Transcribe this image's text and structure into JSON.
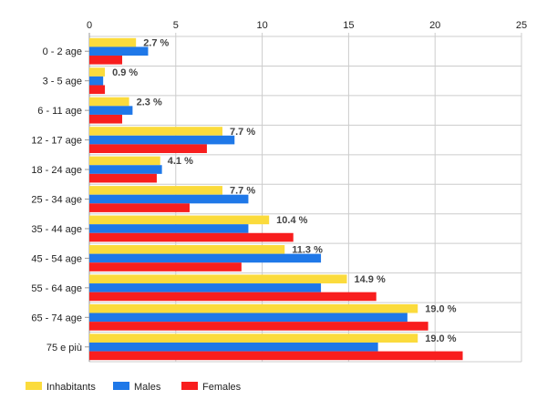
{
  "chart_data": {
    "type": "bar",
    "orientation": "horizontal",
    "categories": [
      "0 - 2 age",
      "3 - 5 age",
      "6 - 11 age",
      "12 - 17 age",
      "18 - 24 age",
      "25 - 34 age",
      "35 - 44 age",
      "45 - 54 age",
      "55 - 64 age",
      "65 - 74 age",
      "75 e più"
    ],
    "series": [
      {
        "name": "Inhabitants",
        "color": "#fbdb3c",
        "values": [
          2.7,
          0.9,
          2.3,
          7.7,
          4.1,
          7.7,
          10.4,
          11.3,
          14.9,
          19.0,
          19.0
        ]
      },
      {
        "name": "Males",
        "color": "#1f78e8",
        "values": [
          3.4,
          0.8,
          2.5,
          8.4,
          4.2,
          9.2,
          9.2,
          13.4,
          13.4,
          18.4,
          16.7
        ]
      },
      {
        "name": "Females",
        "color": "#f81e1e",
        "values": [
          1.9,
          0.9,
          1.9,
          6.8,
          3.9,
          5.8,
          11.8,
          8.8,
          16.6,
          19.6,
          21.6
        ]
      }
    ],
    "data_labels": [
      "2.7 %",
      "0.9 %",
      "2.3 %",
      "7.7 %",
      "4.1 %",
      "7.7 %",
      "10.4 %",
      "11.3 %",
      "14.9 %",
      "19.0 %",
      "19.0 %"
    ],
    "xlim": [
      0,
      25
    ],
    "xticks": [
      "0",
      "5",
      "10",
      "15",
      "20",
      "25"
    ],
    "x_axis_position": "top",
    "grid": true,
    "legend_position": "bottom-left",
    "title": "",
    "xlabel": "",
    "ylabel": ""
  }
}
